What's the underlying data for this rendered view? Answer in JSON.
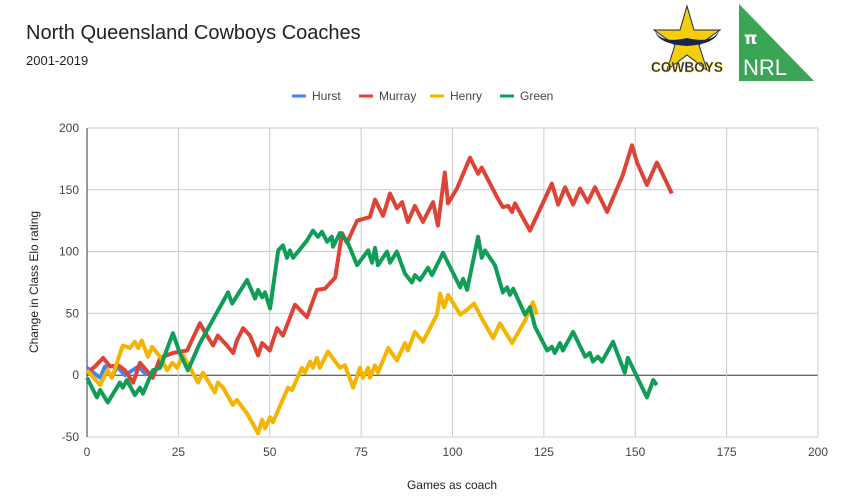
{
  "header": {
    "title": "North Queensland Cowboys Coaches",
    "subtitle": "2001-2019"
  },
  "logos": {
    "team": "COWBOYS",
    "brand_symbol": "π",
    "brand": "NRL",
    "brand_color": "#3AA655"
  },
  "chart_data": {
    "type": "line",
    "title": "North Queensland Cowboys Coaches",
    "subtitle": "2001-2019",
    "xlabel": "Games as coach",
    "ylabel": "Change in Class Elo rating",
    "xlim": [
      0,
      200
    ],
    "ylim": [
      -50,
      200
    ],
    "xticks": [
      0,
      25,
      50,
      75,
      100,
      125,
      150,
      175,
      200
    ],
    "yticks": [
      -50,
      0,
      50,
      100,
      150,
      200
    ],
    "grid": true,
    "legend": "top",
    "series": [
      {
        "name": "Hurst",
        "color": "#4285F4",
        "points": [
          [
            0,
            6
          ],
          [
            3.6,
            -2
          ],
          [
            4.9,
            7
          ],
          [
            6.8,
            -2
          ],
          [
            8.2,
            7
          ],
          [
            10.4,
            0
          ],
          [
            14,
            7
          ],
          [
            16.4,
            0
          ]
        ]
      },
      {
        "name": "Murray",
        "color": "#DB4437",
        "points": [
          [
            0,
            2
          ],
          [
            2.2,
            7
          ],
          [
            4.4,
            14
          ],
          [
            6.3,
            7
          ],
          [
            8.5,
            8
          ],
          [
            10.4,
            4
          ],
          [
            12.6,
            -6
          ],
          [
            14.5,
            10
          ],
          [
            18,
            -2
          ],
          [
            20,
            14
          ],
          [
            23.5,
            18
          ],
          [
            25.4,
            19
          ],
          [
            27.4,
            20
          ],
          [
            30.9,
            42
          ],
          [
            32.8,
            32
          ],
          [
            34.5,
            24
          ],
          [
            35.8,
            32
          ],
          [
            38.3,
            24
          ],
          [
            40,
            18
          ],
          [
            41,
            28
          ],
          [
            42.7,
            38
          ],
          [
            44.6,
            32
          ],
          [
            46.8,
            16
          ],
          [
            47.9,
            26
          ],
          [
            50,
            20
          ],
          [
            52,
            38
          ],
          [
            53.6,
            32
          ],
          [
            56.9,
            57
          ],
          [
            60.2,
            47
          ],
          [
            62.9,
            69
          ],
          [
            65.1,
            70
          ],
          [
            67.9,
            79
          ],
          [
            69.8,
            115
          ],
          [
            71.1,
            107
          ],
          [
            73.9,
            125
          ],
          [
            77.4,
            128
          ],
          [
            78.8,
            142
          ],
          [
            81,
            129
          ],
          [
            82.9,
            147
          ],
          [
            84.8,
            135
          ],
          [
            86.2,
            140
          ],
          [
            87.8,
            124
          ],
          [
            89.7,
            137
          ],
          [
            91.9,
            124
          ],
          [
            94.7,
            140
          ],
          [
            96,
            121
          ],
          [
            97.9,
            164
          ],
          [
            98.8,
            139
          ],
          [
            101.2,
            151
          ],
          [
            104.8,
            176
          ],
          [
            107,
            163
          ],
          [
            108,
            168
          ],
          [
            112.2,
            144
          ],
          [
            113.8,
            136
          ],
          [
            115.2,
            137
          ],
          [
            116.3,
            132
          ],
          [
            117.1,
            139
          ],
          [
            121.2,
            117
          ],
          [
            127.2,
            155
          ],
          [
            128.9,
            138
          ],
          [
            130.8,
            152
          ],
          [
            133,
            138
          ],
          [
            134.9,
            151
          ],
          [
            137,
            140
          ],
          [
            139,
            152
          ],
          [
            142.3,
            132
          ],
          [
            146.6,
            162
          ],
          [
            149.1,
            186
          ],
          [
            150.5,
            172
          ],
          [
            153.2,
            154
          ],
          [
            155.9,
            172
          ],
          [
            156.8,
            167
          ],
          [
            160,
            147
          ]
        ]
      },
      {
        "name": "Henry",
        "color": "#F4B400",
        "points": [
          [
            0,
            4
          ],
          [
            3.6,
            -8
          ],
          [
            5.5,
            4
          ],
          [
            6.8,
            -2
          ],
          [
            9.8,
            24
          ],
          [
            11.8,
            22
          ],
          [
            13.1,
            27
          ],
          [
            14,
            22
          ],
          [
            15,
            28
          ],
          [
            16.7,
            15
          ],
          [
            17.8,
            23
          ],
          [
            20,
            15
          ],
          [
            21.9,
            4
          ],
          [
            23.3,
            10
          ],
          [
            24.6,
            6
          ],
          [
            26.3,
            16
          ],
          [
            28.2,
            6
          ],
          [
            30.4,
            -6
          ],
          [
            31.7,
            2
          ],
          [
            35,
            -14
          ],
          [
            35.8,
            -6
          ],
          [
            37.2,
            -10
          ],
          [
            39.9,
            -24
          ],
          [
            41,
            -20
          ],
          [
            43.8,
            -31
          ],
          [
            46.8,
            -47
          ],
          [
            47.9,
            -36
          ],
          [
            48.7,
            -43
          ],
          [
            50.1,
            -34
          ],
          [
            50.9,
            -38
          ],
          [
            55,
            -10
          ],
          [
            56.1,
            -12
          ],
          [
            58.8,
            6
          ],
          [
            59.6,
            2
          ],
          [
            61,
            11
          ],
          [
            61.8,
            6
          ],
          [
            62.9,
            14
          ],
          [
            63.7,
            6
          ],
          [
            65.9,
            19
          ],
          [
            69.2,
            6
          ],
          [
            70.6,
            8
          ],
          [
            72.8,
            -10
          ],
          [
            74.7,
            6
          ],
          [
            75.5,
            -2
          ],
          [
            76.9,
            6
          ],
          [
            77.4,
            -2
          ],
          [
            78.8,
            8
          ],
          [
            79.6,
            2
          ],
          [
            82.4,
            22
          ],
          [
            84.8,
            12
          ],
          [
            87,
            26
          ],
          [
            87.8,
            20
          ],
          [
            89.7,
            35
          ],
          [
            91.9,
            27
          ],
          [
            94.7,
            43
          ],
          [
            95.8,
            49
          ],
          [
            96.6,
            66
          ],
          [
            97.7,
            55
          ],
          [
            98.8,
            65
          ],
          [
            102.1,
            49
          ],
          [
            104,
            53
          ],
          [
            105.9,
            58
          ],
          [
            108,
            46
          ],
          [
            111.1,
            30
          ],
          [
            113,
            42
          ],
          [
            116.3,
            26
          ],
          [
            119.8,
            44
          ],
          [
            122,
            59
          ],
          [
            123.1,
            49
          ]
        ]
      },
      {
        "name": "Green",
        "color": "#0F9D58",
        "points": [
          [
            0,
            -2
          ],
          [
            2.7,
            -18
          ],
          [
            3.6,
            -12
          ],
          [
            5.7,
            -22
          ],
          [
            9,
            -6
          ],
          [
            9.8,
            -10
          ],
          [
            10.9,
            -4
          ],
          [
            13.1,
            -16
          ],
          [
            14.5,
            -10
          ],
          [
            15.3,
            -15
          ],
          [
            18,
            4
          ],
          [
            20,
            6
          ],
          [
            23.5,
            34
          ],
          [
            25.4,
            18
          ],
          [
            27.6,
            4
          ],
          [
            30.9,
            26
          ],
          [
            38.6,
            67
          ],
          [
            39.7,
            58
          ],
          [
            43.8,
            77
          ],
          [
            46,
            62
          ],
          [
            46.8,
            69
          ],
          [
            47.9,
            63
          ],
          [
            48.7,
            67
          ],
          [
            50.1,
            54
          ],
          [
            52.3,
            101
          ],
          [
            53.6,
            105
          ],
          [
            54.7,
            95
          ],
          [
            55.5,
            101
          ],
          [
            56.4,
            95
          ],
          [
            60.2,
            109
          ],
          [
            61.8,
            117
          ],
          [
            63.2,
            112
          ],
          [
            64.3,
            116
          ],
          [
            65.7,
            108
          ],
          [
            67,
            112
          ],
          [
            67.3,
            104
          ],
          [
            69.2,
            115
          ],
          [
            71.1,
            109
          ],
          [
            73.9,
            89
          ],
          [
            76.9,
            101
          ],
          [
            78,
            91
          ],
          [
            78.8,
            103
          ],
          [
            79.6,
            89
          ],
          [
            82.1,
            100
          ],
          [
            82.9,
            91
          ],
          [
            84.8,
            100
          ],
          [
            87,
            82
          ],
          [
            88.9,
            75
          ],
          [
            89.7,
            81
          ],
          [
            91.1,
            77
          ],
          [
            93.3,
            87
          ],
          [
            94.4,
            81
          ],
          [
            97.4,
            99
          ],
          [
            102.1,
            71
          ],
          [
            102.9,
            78
          ],
          [
            104,
            69
          ],
          [
            107,
            112
          ],
          [
            108,
            95
          ],
          [
            108.9,
            101
          ],
          [
            111.6,
            89
          ],
          [
            113.8,
            67
          ],
          [
            114.9,
            71
          ],
          [
            115.7,
            65
          ],
          [
            116.6,
            70
          ],
          [
            119.8,
            49
          ],
          [
            121.2,
            55
          ],
          [
            122.6,
            39
          ],
          [
            125.9,
            20
          ],
          [
            127.2,
            23
          ],
          [
            128,
            18
          ],
          [
            129.4,
            26
          ],
          [
            130.2,
            20
          ],
          [
            133,
            35
          ],
          [
            136.3,
            15
          ],
          [
            137.6,
            18
          ],
          [
            138.4,
            11
          ],
          [
            139.8,
            15
          ],
          [
            140.9,
            11
          ],
          [
            143.9,
            27
          ],
          [
            147.1,
            2
          ],
          [
            148,
            14
          ],
          [
            153.2,
            -18
          ],
          [
            154.9,
            -4
          ],
          [
            155.9,
            -8
          ]
        ]
      }
    ]
  }
}
